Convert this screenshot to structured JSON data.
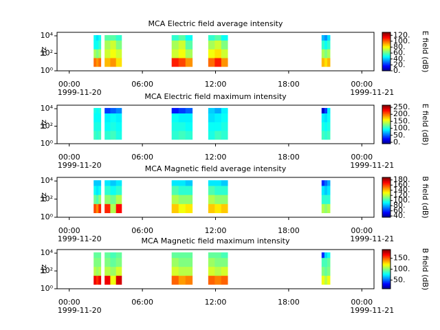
{
  "chart_data": [
    {
      "type": "heatmap",
      "title": "MCA  Electric field average intensity",
      "ylabel": "Hz",
      "colorbar_label": "E field (dB)",
      "colormap": "jet",
      "log_y": true,
      "xlim": [
        -1,
        25
      ],
      "ylim": [
        1,
        25000
      ],
      "xticks": [
        {
          "value": 0,
          "label": "00:00"
        },
        {
          "value": 6,
          "label": "06:00"
        },
        {
          "value": 12,
          "label": "12:00"
        },
        {
          "value": 18,
          "label": "18:00"
        },
        {
          "value": 24,
          "label": "00:00"
        }
      ],
      "xtick_dates": [
        {
          "value": 0,
          "label": "1999-11-20"
        },
        {
          "value": 24,
          "label": "1999-11-21"
        }
      ],
      "yticks": [
        {
          "value": 1,
          "label": "10⁰"
        },
        {
          "value": 100,
          "label": "10²"
        },
        {
          "value": 10000,
          "label": "10⁴"
        }
      ],
      "freq_bins": [
        3,
        30,
        300,
        3000,
        12000
      ],
      "clim": [
        0,
        130
      ],
      "cticks": [
        {
          "value": 0,
          "label": "0."
        },
        {
          "value": 20,
          "label": "20."
        },
        {
          "value": 40,
          "label": "40."
        },
        {
          "value": 60,
          "label": "60."
        },
        {
          "value": 80,
          "label": "80."
        },
        {
          "value": 100,
          "label": "100."
        },
        {
          "value": 120,
          "label": "120."
        }
      ],
      "segments": [
        {
          "x": [
            2.0,
            2.6
          ],
          "values": [
            [
              100,
              70,
              50,
              50
            ],
            [
              95,
              65,
              50,
              45
            ],
            [
              100,
              70,
              55,
              50
            ]
          ]
        },
        {
          "x": [
            2.9,
            4.3
          ],
          "values": [
            [
              90,
              75,
              70,
              60
            ],
            [
              95,
              80,
              75,
              60
            ],
            [
              85,
              75,
              65,
              55
            ]
          ]
        },
        {
          "x": [
            8.4,
            10.1
          ],
          "values": [
            [
              110,
              75,
              70,
              55
            ],
            [
              105,
              80,
              75,
              60
            ],
            [
              95,
              70,
              60,
              50
            ]
          ]
        },
        {
          "x": [
            11.4,
            13.0
          ],
          "values": [
            [
              100,
              80,
              70,
              55
            ],
            [
              110,
              85,
              75,
              60
            ],
            [
              95,
              75,
              65,
              50
            ]
          ]
        },
        {
          "x": [
            20.7,
            21.4
          ],
          "values": [
            [
              90,
              70,
              55,
              40
            ],
            [
              85,
              65,
              50,
              35
            ],
            [
              90,
              70,
              55,
              45
            ]
          ]
        }
      ]
    },
    {
      "type": "heatmap",
      "title": "MCA  Electric field maximum intensity",
      "ylabel": "Hz",
      "colorbar_label": "E field (dB)",
      "colormap": "jet",
      "log_y": true,
      "xlim": [
        -1,
        25
      ],
      "ylim": [
        1,
        25000
      ],
      "xticks": [
        {
          "value": 0,
          "label": "00:00"
        },
        {
          "value": 6,
          "label": "06:00"
        },
        {
          "value": 12,
          "label": "12:00"
        },
        {
          "value": 18,
          "label": "18:00"
        },
        {
          "value": 24,
          "label": "00:00"
        }
      ],
      "xtick_dates": [
        {
          "value": 0,
          "label": "1999-11-20"
        },
        {
          "value": 24,
          "label": "1999-11-21"
        }
      ],
      "yticks": [
        {
          "value": 1,
          "label": "10⁰"
        },
        {
          "value": 100,
          "label": "10²"
        },
        {
          "value": 10000,
          "label": "10⁴"
        }
      ],
      "freq_bins": [
        3,
        30,
        300,
        3000,
        12000
      ],
      "clim": [
        -10,
        265
      ],
      "cticks": [
        {
          "value": 0,
          "label": "0."
        },
        {
          "value": 50,
          "label": "50."
        },
        {
          "value": 100,
          "label": "100."
        },
        {
          "value": 150,
          "label": "150."
        },
        {
          "value": 200,
          "label": "200."
        },
        {
          "value": 250,
          "label": "250."
        }
      ],
      "segments": [
        {
          "x": [
            2.0,
            2.6
          ],
          "values": [
            [
              110,
              100,
              95,
              100
            ],
            [
              105,
              100,
              95,
              95
            ],
            [
              110,
              100,
              95,
              100
            ]
          ]
        },
        {
          "x": [
            2.9,
            4.3
          ],
          "values": [
            [
              105,
              95,
              90,
              40
            ],
            [
              110,
              100,
              95,
              50
            ],
            [
              100,
              95,
              90,
              60
            ]
          ]
        },
        {
          "x": [
            8.4,
            10.1
          ],
          "values": [
            [
              105,
              100,
              95,
              30
            ],
            [
              110,
              100,
              90,
              40
            ],
            [
              105,
              95,
              90,
              50
            ]
          ]
        },
        {
          "x": [
            11.4,
            13.0
          ],
          "values": [
            [
              100,
              95,
              85,
              80
            ],
            [
              110,
              95,
              90,
              70
            ],
            [
              105,
              100,
              95,
              90
            ]
          ]
        },
        {
          "x": [
            20.7,
            21.4
          ],
          "values": [
            [
              110,
              100,
              90,
              10
            ],
            [
              105,
              95,
              85,
              40
            ],
            [
              110,
              100,
              95,
              90
            ]
          ]
        }
      ]
    },
    {
      "type": "heatmap",
      "title": "MCA  Magnetic field average intensity",
      "ylabel": "Hz",
      "colorbar_label": "B field (dB)",
      "colormap": "jet",
      "log_y": true,
      "xlim": [
        -1,
        25
      ],
      "ylim": [
        1,
        25000
      ],
      "xticks": [
        {
          "value": 0,
          "label": "00:00"
        },
        {
          "value": 6,
          "label": "06:00"
        },
        {
          "value": 12,
          "label": "12:00"
        },
        {
          "value": 18,
          "label": "18:00"
        },
        {
          "value": 24,
          "label": "00:00"
        }
      ],
      "xtick_dates": [
        {
          "value": 0,
          "label": "1999-11-20"
        },
        {
          "value": 24,
          "label": "1999-11-21"
        }
      ],
      "yticks": [
        {
          "value": 1,
          "label": "10⁰"
        },
        {
          "value": 100,
          "label": "10²"
        },
        {
          "value": 10000,
          "label": "10⁴"
        }
      ],
      "freq_bins": [
        3,
        30,
        300,
        3000,
        12000
      ],
      "clim": [
        35,
        190
      ],
      "cticks": [
        {
          "value": 40,
          "label": "40."
        },
        {
          "value": 60,
          "label": "60."
        },
        {
          "value": 80,
          "label": "80."
        },
        {
          "value": 100,
          "label": "100."
        },
        {
          "value": 120,
          "label": "120."
        },
        {
          "value": 140,
          "label": "140."
        },
        {
          "value": 160,
          "label": "160."
        },
        {
          "value": 180,
          "label": "180."
        }
      ],
      "segments": [
        {
          "x": [
            2.0,
            2.6
          ],
          "values": [
            [
              160,
              110,
              95,
              85
            ],
            [
              150,
              105,
              90,
              85
            ],
            [
              165,
              115,
              95,
              85
            ]
          ]
        },
        {
          "x": [
            2.9,
            4.3
          ],
          "values": [
            [
              165,
              115,
              100,
              90
            ],
            [
              120,
              110,
              95,
              85
            ],
            [
              170,
              120,
              100,
              90
            ]
          ]
        },
        {
          "x": [
            8.4,
            10.1
          ],
          "values": [
            [
              140,
              120,
              105,
              90
            ],
            [
              130,
              115,
              100,
              90
            ],
            [
              135,
              115,
              100,
              85
            ]
          ]
        },
        {
          "x": [
            11.4,
            13.0
          ],
          "values": [
            [
              140,
              120,
              105,
              90
            ],
            [
              135,
              115,
              100,
              90
            ],
            [
              140,
              115,
              100,
              85
            ]
          ]
        },
        {
          "x": [
            20.7,
            21.4
          ],
          "values": [
            [
              120,
              100,
              90,
              60
            ],
            [
              115,
              100,
              85,
              70
            ],
            [
              120,
              100,
              90,
              80
            ]
          ]
        }
      ]
    },
    {
      "type": "heatmap",
      "title": "MCA  Magnetic field maximum intensity",
      "ylabel": "Hz",
      "colorbar_label": "B field (dB)",
      "colormap": "jet",
      "log_y": true,
      "xlim": [
        -1,
        25
      ],
      "ylim": [
        1,
        25000
      ],
      "xticks": [
        {
          "value": 0,
          "label": "00:00"
        },
        {
          "value": 6,
          "label": "06:00"
        },
        {
          "value": 12,
          "label": "12:00"
        },
        {
          "value": 18,
          "label": "18:00"
        },
        {
          "value": 24,
          "label": "00:00"
        }
      ],
      "xtick_dates": [
        {
          "value": 0,
          "label": "1999-11-20"
        },
        {
          "value": 24,
          "label": "1999-11-21"
        }
      ],
      "yticks": [
        {
          "value": 1,
          "label": "10⁰"
        },
        {
          "value": 100,
          "label": "10²"
        },
        {
          "value": 10000,
          "label": "10⁴"
        }
      ],
      "freq_bins": [
        3,
        30,
        300,
        3000,
        12000
      ],
      "clim": [
        10,
        190
      ],
      "cticks": [
        {
          "value": 50,
          "label": "50."
        },
        {
          "value": 100,
          "label": "100."
        },
        {
          "value": 150,
          "label": "150."
        }
      ],
      "segments": [
        {
          "x": [
            2.0,
            2.6
          ],
          "values": [
            [
              170,
              110,
              100,
              95
            ],
            [
              160,
              105,
              100,
              95
            ],
            [
              170,
              110,
              100,
              95
            ]
          ]
        },
        {
          "x": [
            2.9,
            4.3
          ],
          "values": [
            [
              170,
              110,
              100,
              95
            ],
            [
              120,
              105,
              95,
              90
            ],
            [
              175,
              115,
              100,
              95
            ]
          ]
        },
        {
          "x": [
            8.4,
            10.1
          ],
          "values": [
            [
              150,
              115,
              105,
              95
            ],
            [
              140,
              110,
              100,
              95
            ],
            [
              145,
              110,
              100,
              95
            ]
          ]
        },
        {
          "x": [
            11.4,
            13.0
          ],
          "values": [
            [
              150,
              115,
              105,
              95
            ],
            [
              145,
              110,
              100,
              95
            ],
            [
              150,
              115,
              100,
              90
            ]
          ]
        },
        {
          "x": [
            20.7,
            21.4
          ],
          "values": [
            [
              120,
              100,
              90,
              40
            ],
            [
              110,
              95,
              90,
              70
            ],
            [
              120,
              100,
              95,
              80
            ]
          ]
        }
      ]
    }
  ]
}
